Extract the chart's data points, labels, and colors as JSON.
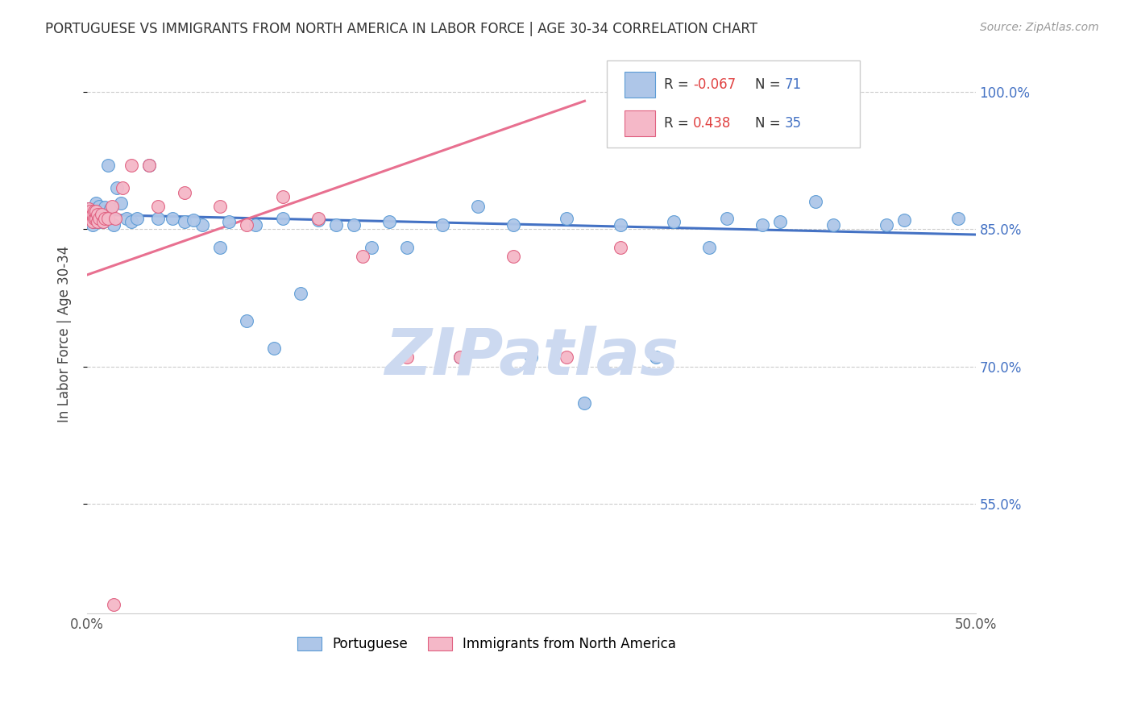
{
  "title": "PORTUGUESE VS IMMIGRANTS FROM NORTH AMERICA IN LABOR FORCE | AGE 30-34 CORRELATION CHART",
  "source": "Source: ZipAtlas.com",
  "ylabel": "In Labor Force | Age 30-34",
  "xlim": [
    0.0,
    0.5
  ],
  "ylim": [
    0.43,
    1.04
  ],
  "yticks_right": [
    0.55,
    0.7,
    0.85,
    1.0
  ],
  "ytick_labels_right": [
    "55.0%",
    "70.0%",
    "85.0%",
    "100.0%"
  ],
  "blue_color": "#aec6e8",
  "pink_color": "#f5b8c8",
  "blue_edge_color": "#5b9bd5",
  "pink_edge_color": "#e06080",
  "blue_line_color": "#4472c4",
  "pink_line_color": "#e87090",
  "watermark": "ZIPatlas",
  "watermark_color": "#ccd9f0",
  "legend_r1_text": "R = -0.067",
  "legend_n1_text": "N = 71",
  "legend_r1_color": "#e05050",
  "legend_n1_color": "#4472c4",
  "legend_r2_text": "R =  0.438",
  "legend_n2_text": "N = 35",
  "legend_r2_color": "#e05050",
  "legend_n2_color": "#4472c4",
  "blue_x": [
    0.001,
    0.001,
    0.002,
    0.002,
    0.003,
    0.003,
    0.003,
    0.004,
    0.004,
    0.004,
    0.005,
    0.005,
    0.005,
    0.006,
    0.006,
    0.007,
    0.007,
    0.007,
    0.008,
    0.008,
    0.009,
    0.009,
    0.01,
    0.01,
    0.011,
    0.012,
    0.013,
    0.015,
    0.017,
    0.019,
    0.022,
    0.025,
    0.028,
    0.035,
    0.04,
    0.048,
    0.055,
    0.065,
    0.08,
    0.095,
    0.11,
    0.13,
    0.15,
    0.17,
    0.2,
    0.22,
    0.24,
    0.27,
    0.3,
    0.33,
    0.36,
    0.39,
    0.42,
    0.46,
    0.49,
    0.06,
    0.075,
    0.09,
    0.105,
    0.12,
    0.14,
    0.16,
    0.18,
    0.21,
    0.25,
    0.28,
    0.32,
    0.35,
    0.38,
    0.41,
    0.45
  ],
  "blue_y": [
    0.865,
    0.872,
    0.86,
    0.868,
    0.855,
    0.862,
    0.87,
    0.858,
    0.865,
    0.872,
    0.86,
    0.868,
    0.878,
    0.862,
    0.87,
    0.858,
    0.866,
    0.875,
    0.862,
    0.87,
    0.858,
    0.866,
    0.862,
    0.874,
    0.866,
    0.92,
    0.872,
    0.855,
    0.895,
    0.878,
    0.862,
    0.858,
    0.862,
    0.92,
    0.862,
    0.862,
    0.858,
    0.855,
    0.858,
    0.855,
    0.862,
    0.86,
    0.855,
    0.858,
    0.855,
    0.875,
    0.855,
    0.862,
    0.855,
    0.858,
    0.862,
    0.858,
    0.855,
    0.86,
    0.862,
    0.86,
    0.83,
    0.75,
    0.72,
    0.78,
    0.855,
    0.83,
    0.83,
    0.71,
    0.71,
    0.66,
    0.71,
    0.83,
    0.855,
    0.88,
    0.855
  ],
  "pink_x": [
    0.001,
    0.001,
    0.002,
    0.002,
    0.003,
    0.003,
    0.004,
    0.004,
    0.005,
    0.005,
    0.006,
    0.006,
    0.007,
    0.008,
    0.009,
    0.01,
    0.012,
    0.014,
    0.016,
    0.02,
    0.025,
    0.035,
    0.04,
    0.055,
    0.075,
    0.09,
    0.11,
    0.13,
    0.155,
    0.18,
    0.21,
    0.24,
    0.27,
    0.3,
    0.015
  ],
  "pink_y": [
    0.865,
    0.872,
    0.862,
    0.87,
    0.858,
    0.866,
    0.862,
    0.87,
    0.862,
    0.87,
    0.858,
    0.866,
    0.862,
    0.866,
    0.858,
    0.862,
    0.862,
    0.875,
    0.862,
    0.895,
    0.92,
    0.92,
    0.875,
    0.89,
    0.875,
    0.855,
    0.885,
    0.862,
    0.82,
    0.71,
    0.71,
    0.82,
    0.71,
    0.83,
    0.44
  ],
  "blue_trendline": [
    0.866,
    0.844
  ],
  "pink_trendline_x": [
    0.0,
    0.28
  ],
  "pink_trendline_y": [
    0.8,
    0.99
  ]
}
